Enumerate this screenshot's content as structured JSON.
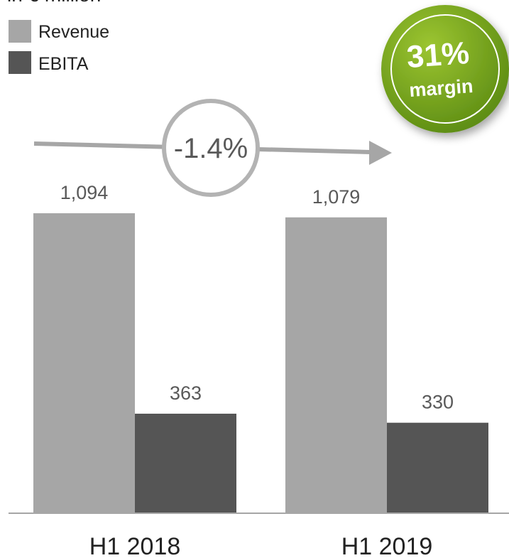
{
  "chart_data": {
    "type": "bar",
    "subtitle": "in € million",
    "categories": [
      "H1 2018",
      "H1 2019"
    ],
    "series": [
      {
        "name": "Revenue",
        "values": [
          1094,
          1079
        ],
        "labels": [
          "1,094",
          "1,079"
        ],
        "color": "#a6a6a6"
      },
      {
        "name": "EBITA",
        "values": [
          363,
          330
        ],
        "labels": [
          "363",
          "330"
        ],
        "color": "#555555"
      }
    ],
    "ylim": [
      0,
      1094
    ],
    "grid": false,
    "legend_position": "top-left",
    "annotations": {
      "change": "-1.4%",
      "margin_value": "31%",
      "margin_label": "margin"
    },
    "colors": {
      "axis": "#a6a6a6",
      "arrow": "#a6a6a6",
      "change_circle": "#b3b3b3",
      "text": "#595959",
      "category_text": "#222222",
      "badge_light": "#9cc531",
      "badge_dark": "#5a8a12"
    }
  }
}
